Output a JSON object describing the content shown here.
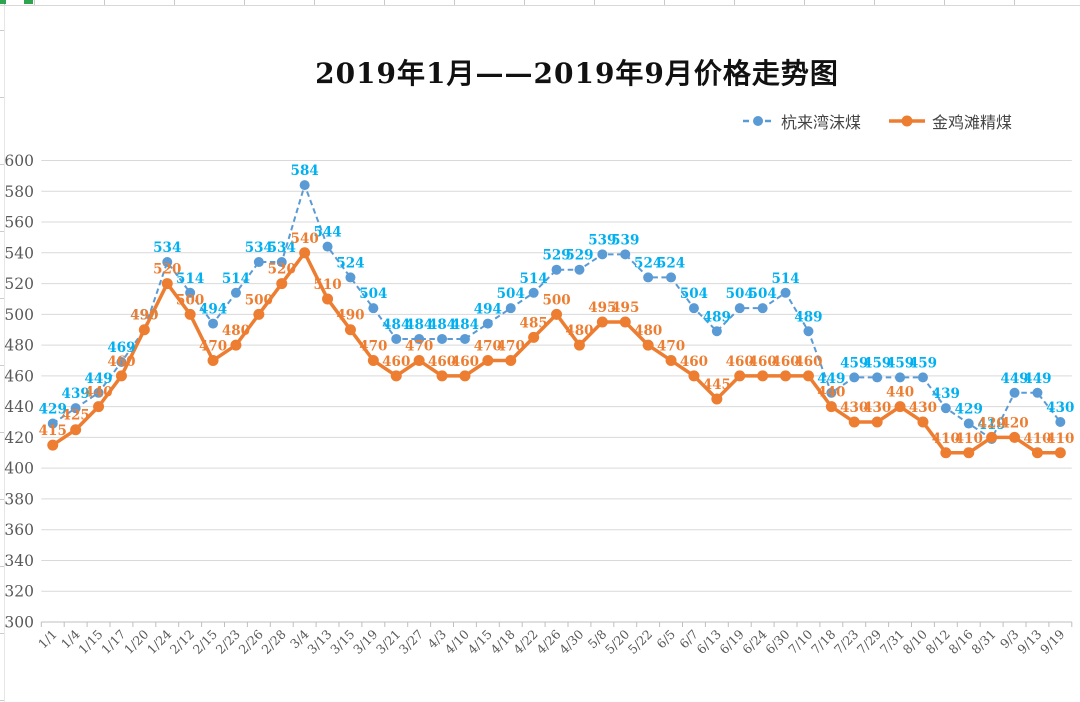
{
  "title": "2019年1月——2019年9月价格走势图",
  "legend": {
    "items": [
      {
        "label": "杭来湾沫煤"
      },
      {
        "label": "金鸡滩精煤"
      }
    ]
  },
  "colors": {
    "gridline": "#d9d9d9",
    "axis_line": "#bfbfbf",
    "axis_text": "#595959",
    "title_text": "#111111",
    "sheet_green": "#2ea44f"
  },
  "chart_data": {
    "type": "line",
    "title": "2019年1月——2019年9月价格走势图",
    "xlabel": "",
    "ylabel": "",
    "ylim": [
      300,
      600
    ],
    "y_ticks": [
      300,
      320,
      340,
      360,
      380,
      400,
      420,
      440,
      460,
      480,
      500,
      520,
      540,
      560,
      580,
      600
    ],
    "grid": true,
    "legend_position": "top-right",
    "data_labels": true,
    "categories": [
      "1/1",
      "1/4",
      "1/15",
      "1/17",
      "1/20",
      "1/24",
      "2/12",
      "2/15",
      "2/23",
      "2/26",
      "2/28",
      "3/4",
      "3/13",
      "3/15",
      "3/19",
      "3/21",
      "3/27",
      "4/3",
      "4/10",
      "4/15",
      "4/18",
      "4/22",
      "4/26",
      "4/30",
      "5/8",
      "5/20",
      "5/22",
      "6/5",
      "6/7",
      "6/13",
      "6/19",
      "6/24",
      "6/30",
      "7/10",
      "7/18",
      "7/23",
      "7/29",
      "7/31",
      "8/10",
      "8/12",
      "8/16",
      "8/31",
      "9/3",
      "9/13",
      "9/19"
    ],
    "series": [
      {
        "name": "杭来湾沫煤",
        "style": "dashed",
        "line_color": "#5b9bd5",
        "marker_color": "#5b9bd5",
        "label_color": "#00b0f0",
        "values": [
          429,
          439,
          449,
          469,
          490,
          534,
          514,
          494,
          514,
          534,
          534,
          584,
          544,
          524,
          504,
          484,
          484,
          484,
          484,
          494,
          504,
          514,
          529,
          529,
          539,
          539,
          524,
          524,
          504,
          489,
          504,
          504,
          514,
          489,
          449,
          459,
          459,
          459,
          459,
          439,
          429,
          419,
          449,
          449,
          430
        ]
      },
      {
        "name": "金鸡滩精煤",
        "style": "solid",
        "line_color": "#ed7d31",
        "marker_color": "#ed7d31",
        "label_color": "#ed7d31",
        "values": [
          415,
          425,
          440,
          460,
          490,
          520,
          500,
          470,
          480,
          500,
          520,
          540,
          510,
          490,
          470,
          460,
          470,
          460,
          460,
          470,
          470,
          485,
          500,
          480,
          495,
          495,
          480,
          470,
          460,
          445,
          460,
          460,
          460,
          460,
          440,
          430,
          430,
          440,
          430,
          410,
          410,
          420,
          420,
          410,
          410
        ]
      }
    ]
  }
}
